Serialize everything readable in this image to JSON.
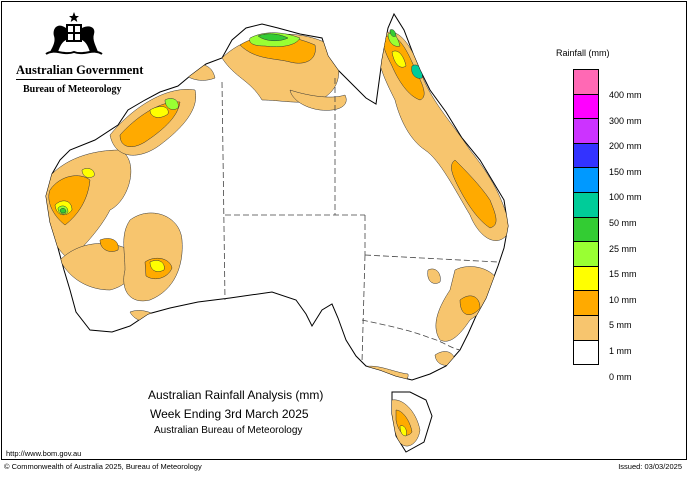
{
  "header": {
    "government": "Australian Government",
    "bureau": "Bureau of Meteorology"
  },
  "map": {
    "title_line1": "Australian Rainfall Analysis (mm)",
    "title_line2": "Week Ending 3rd March 2025",
    "title_line3": "Australian Bureau of Meteorology",
    "background_color": "#ffffff",
    "land_dry_color": "#ffffff"
  },
  "legend": {
    "title": "Rainfall (mm)",
    "classes": [
      {
        "label": "400 mm",
        "color": "#ff69b4"
      },
      {
        "label": "300 mm",
        "color": "#ff00ff"
      },
      {
        "label": "200 mm",
        "color": "#cc33ff"
      },
      {
        "label": "150 mm",
        "color": "#3333ff"
      },
      {
        "label": "100 mm",
        "color": "#0099ff"
      },
      {
        "label": "50 mm",
        "color": "#00cc99"
      },
      {
        "label": "25 mm",
        "color": "#33cc33"
      },
      {
        "label": "15 mm",
        "color": "#99ff33"
      },
      {
        "label": "10 mm",
        "color": "#ffff00"
      },
      {
        "label": "5 mm",
        "color": "#ffaa00"
      },
      {
        "label": "1 mm",
        "color": "#f7c56e"
      },
      {
        "label": "0 mm",
        "color": "#ffffff"
      }
    ]
  },
  "footer": {
    "url": "http://www.bom.gov.au",
    "copyright": "© Commonwealth of Australia 2025, Bureau of Meteorology",
    "issued": "Issued: 03/03/2025"
  }
}
